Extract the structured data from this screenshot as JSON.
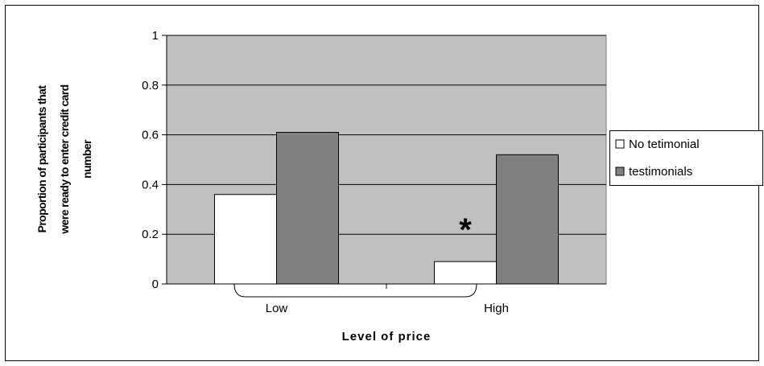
{
  "chart_data": {
    "type": "bar",
    "title": "",
    "xlabel": "Level of price",
    "ylabel_lines": [
      "Proportion of participants that",
      "were ready to enter credit card",
      "number"
    ],
    "categories": [
      "Low",
      "High"
    ],
    "series": [
      {
        "name": "No tetimonial",
        "values": [
          0.36,
          0.09
        ],
        "color": "#ffffff"
      },
      {
        "name": "testimonials",
        "values": [
          0.61,
          0.52
        ],
        "color": "#808080"
      }
    ],
    "ylim": [
      0,
      1
    ],
    "yticks": [
      "0",
      "0.2",
      "0.4",
      "0.6",
      "0.8",
      "1"
    ],
    "grid": true,
    "plot_background": "#c0c0c0",
    "legend": "right",
    "annotations": [
      {
        "text": "*",
        "category": "High"
      }
    ]
  }
}
